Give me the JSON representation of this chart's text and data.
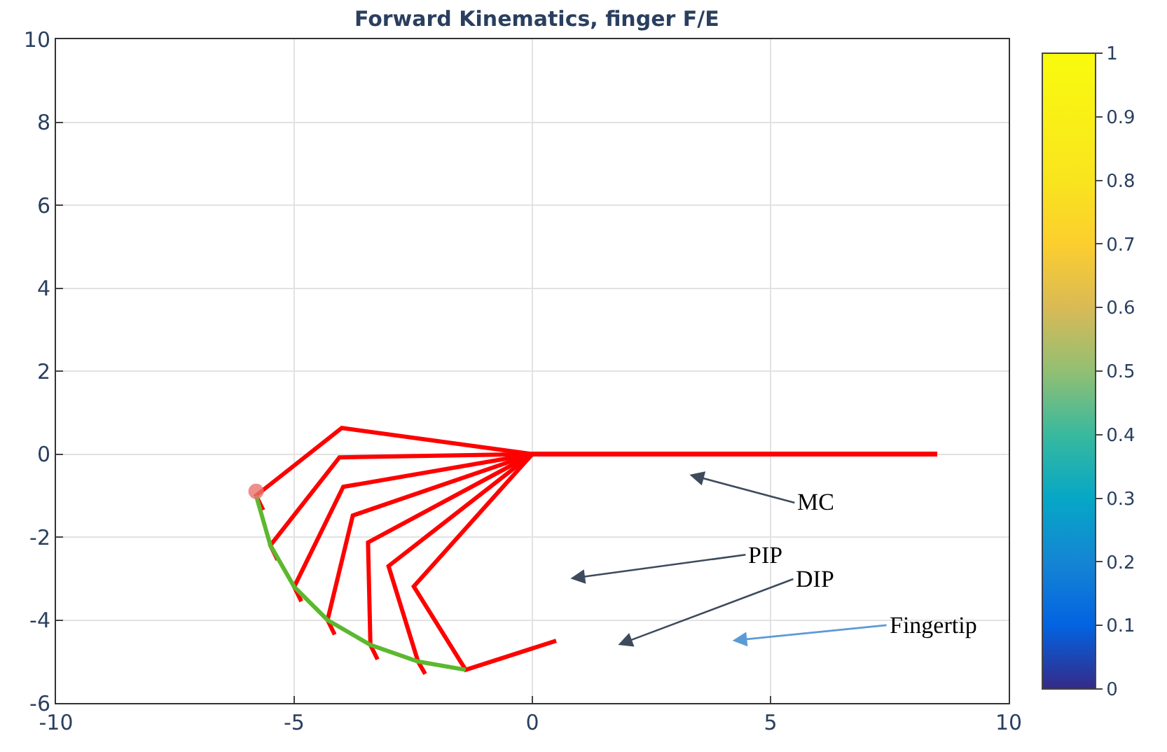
{
  "chart_data": {
    "type": "line",
    "title": "Forward Kinematics, finger F/E",
    "series": [
      {
        "color": "#ff0000",
        "x": [
          8.5,
          0,
          -4.0,
          -5.8,
          -5.65
        ],
        "values": [
          0,
          0,
          0.63,
          -1.0,
          -1.35
        ]
      },
      {
        "color": "#ff0000",
        "x": [
          8.5,
          0,
          -4.05,
          -5.5,
          -5.35
        ],
        "values": [
          0,
          0,
          -0.08,
          -2.2,
          -2.55
        ]
      },
      {
        "color": "#ff0000",
        "x": [
          8.5,
          0,
          -3.97,
          -5.0,
          -4.85
        ],
        "values": [
          0,
          0,
          -0.79,
          -3.2,
          -3.55
        ]
      },
      {
        "color": "#ff0000",
        "x": [
          8.5,
          0,
          -3.77,
          -4.3,
          -4.15
        ],
        "values": [
          0,
          0,
          -1.48,
          -4.0,
          -4.35
        ]
      },
      {
        "color": "#ff0000",
        "x": [
          8.5,
          0,
          -3.45,
          -3.4,
          -3.25
        ],
        "values": [
          0,
          0,
          -2.13,
          -4.6,
          -4.95
        ]
      },
      {
        "color": "#ff0000",
        "x": [
          8.5,
          0,
          -3.02,
          -2.4,
          -2.25
        ],
        "values": [
          0,
          0,
          -2.7,
          -5.0,
          -5.3
        ]
      },
      {
        "color": "#ff0000",
        "x": [
          8.5,
          0,
          -2.49,
          -1.4,
          0.5
        ],
        "values": [
          0,
          0,
          -3.19,
          -5.2,
          -4.5
        ]
      },
      {
        "color": "#5cb82e",
        "x": [
          -5.8,
          -5.5,
          -5.0,
          -4.3,
          -3.4,
          -2.4,
          -1.4
        ],
        "values": [
          -1.0,
          -2.2,
          -3.2,
          -4.0,
          -4.6,
          -5.0,
          -5.2
        ]
      },
      {
        "type": "scatter",
        "color": "#e8736e",
        "x": [
          -5.8
        ],
        "values": [
          -0.9
        ]
      }
    ],
    "annotations": [
      "MC",
      "PIP",
      "DIP",
      "Fingertip"
    ],
    "xlim": [
      -10,
      10
    ],
    "xticks": [
      -10,
      -5,
      0,
      5,
      10
    ],
    "ylim": [
      -6,
      10
    ],
    "yticks": [
      -6,
      -4,
      -2,
      0,
      2,
      4,
      6,
      8,
      10
    ],
    "clim": [
      0,
      1
    ],
    "cticks": [
      0,
      0.1,
      0.2,
      0.3,
      0.4,
      0.5,
      0.6,
      0.7,
      0.8,
      0.9,
      1
    ],
    "grid": true
  }
}
